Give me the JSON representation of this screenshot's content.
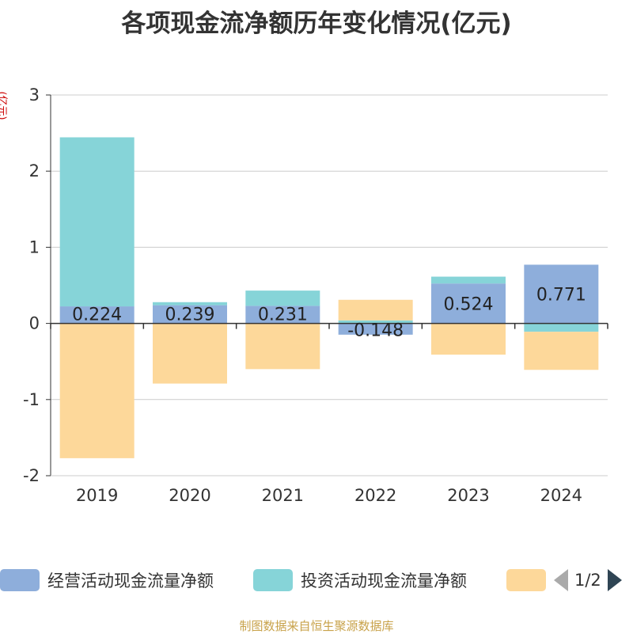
{
  "title": "各项现金流净额历年变化情况(亿元)",
  "unit_label": "(亿元)",
  "source": "制图数据来自恒生聚源数据库",
  "legend": {
    "items": [
      {
        "label": "经营活动现金流量净额",
        "color": "#8eaedb"
      },
      {
        "label": "投资活动现金流量净额",
        "color": "#86d4d8"
      },
      {
        "label": "",
        "color": "#fdd89a"
      }
    ],
    "page": "1/2"
  },
  "chart_data": {
    "type": "bar",
    "stacked": true,
    "categories": [
      "2019",
      "2020",
      "2021",
      "2022",
      "2023",
      "2024"
    ],
    "series": [
      {
        "name": "经营活动现金流量净额",
        "color": "#8eaedb",
        "values": [
          0.224,
          0.239,
          0.231,
          -0.148,
          0.524,
          0.771
        ]
      },
      {
        "name": "投资活动现金流量净额",
        "color": "#86d4d8",
        "values": [
          2.22,
          0.04,
          0.2,
          0.04,
          0.09,
          -0.11
        ]
      },
      {
        "color": "#fdd89a",
        "values": [
          -1.77,
          -0.79,
          -0.6,
          0.27,
          -0.41,
          -0.5
        ]
      }
    ],
    "data_labels": [
      "0.224",
      "0.239",
      "0.231",
      "-0.148",
      "0.524",
      "0.771"
    ],
    "y_ticks": [
      "3",
      "2",
      "1",
      "0",
      "-1",
      "-2"
    ],
    "ylim": [
      -2,
      3
    ],
    "grid": true
  }
}
